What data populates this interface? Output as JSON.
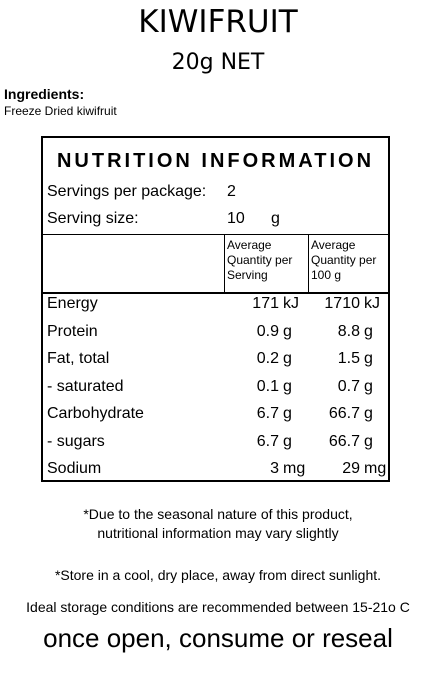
{
  "product": {
    "name": "KIWIFRUIT",
    "net": "20g NET"
  },
  "ingredients": {
    "heading": "Ingredients:",
    "text": "Freeze Dried kiwifruit"
  },
  "panel": {
    "heading": "NUTRITION INFORMATION",
    "servings_label": "Servings per package:",
    "servings_value": "2",
    "size_label": "Serving size:",
    "size_value": "10",
    "size_unit": "g",
    "col1": [
      "Average",
      "Quantity per",
      "Serving"
    ],
    "col2": [
      "Average",
      "Quantity per",
      "100 g"
    ],
    "rows": [
      {
        "label": "Energy",
        "v1": "171",
        "u1": "kJ",
        "v2": "1710",
        "u2": "kJ"
      },
      {
        "label": "Protein",
        "v1": "0.9",
        "u1": "g",
        "v2": "8.8",
        "u2": "g"
      },
      {
        "label": "Fat, total",
        "v1": "0.2",
        "u1": "g",
        "v2": "1.5",
        "u2": "g"
      },
      {
        "label": "- saturated",
        "v1": "0.1",
        "u1": "g",
        "v2": "0.7",
        "u2": "g"
      },
      {
        "label": "Carbohydrate",
        "v1": "6.7",
        "u1": "g",
        "v2": "66.7",
        "u2": "g"
      },
      {
        "label": "- sugars",
        "v1": "6.7",
        "u1": "g",
        "v2": "66.7",
        "u2": "g"
      },
      {
        "label": "Sodium",
        "v1": "3",
        "u1": "mg",
        "v2": "29",
        "u2": "mg"
      }
    ]
  },
  "notes": {
    "seasonal_1": "*Due to the seasonal nature of this product,",
    "seasonal_2": "nutritional information may vary slightly",
    "store": "*Store in a cool, dry place, away from direct sunlight.",
    "ideal": "Ideal storage conditions are recommended between 15-21o C",
    "open": "once open, consume or reseal"
  }
}
